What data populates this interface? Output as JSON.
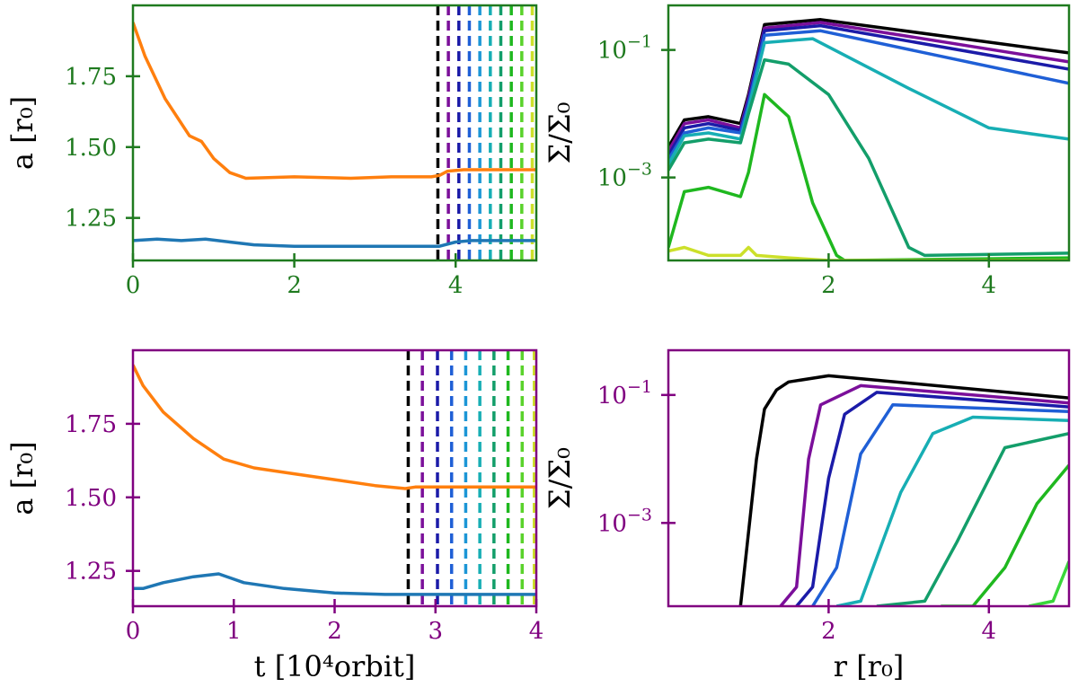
{
  "chart_data": [
    {
      "id": "top-left",
      "type": "line",
      "axis_color": "#1f7a1f",
      "xlim": [
        0,
        5
      ],
      "ylim": [
        1.1,
        2.0
      ],
      "xticks": [
        {
          "v": 0,
          "label": "0"
        },
        {
          "v": 2,
          "label": "2"
        },
        {
          "v": 4,
          "label": "4"
        }
      ],
      "yticks": [
        {
          "v": 1.25,
          "label": "1.25"
        },
        {
          "v": 1.5,
          "label": "1.50"
        },
        {
          "v": 1.75,
          "label": "1.75"
        }
      ],
      "ylabel": "a [r₀]",
      "xlabel": "",
      "series": [
        {
          "color": "#ff7f0e",
          "x": [
            0,
            0.15,
            0.4,
            0.7,
            0.85,
            1.0,
            1.2,
            1.4,
            2.0,
            2.7,
            3.2,
            3.7,
            3.8,
            3.9,
            4.1,
            5.0
          ],
          "y": [
            1.94,
            1.82,
            1.67,
            1.54,
            1.52,
            1.46,
            1.41,
            1.39,
            1.395,
            1.39,
            1.395,
            1.395,
            1.4,
            1.415,
            1.42,
            1.42
          ]
        },
        {
          "color": "#1f77b4",
          "x": [
            0,
            0.3,
            0.6,
            0.9,
            1.2,
            1.5,
            2.0,
            2.5,
            3.0,
            3.5,
            3.8,
            4.0,
            4.2,
            5.0
          ],
          "y": [
            1.17,
            1.175,
            1.17,
            1.175,
            1.165,
            1.155,
            1.15,
            1.15,
            1.15,
            1.15,
            1.15,
            1.165,
            1.17,
            1.17
          ]
        }
      ],
      "vlines": {
        "x": [
          3.78,
          3.91,
          4.04,
          4.17,
          4.3,
          4.43,
          4.56,
          4.69,
          4.82,
          4.95
        ],
        "colors": [
          "#000000",
          "#7b0f9a",
          "#1b1ba8",
          "#1f5fd6",
          "#1c96d6",
          "#17aeb4",
          "#139e6a",
          "#1fb81f",
          "#5ad22b",
          "#cce02a"
        ]
      }
    },
    {
      "id": "top-right",
      "type": "line",
      "axis_color": "#1f7a1f",
      "xlim": [
        0,
        5
      ],
      "ylog": true,
      "ylim": [
        5e-05,
        0.5
      ],
      "xticks": [
        {
          "v": 2,
          "label": "2"
        },
        {
          "v": 4,
          "label": "4"
        }
      ],
      "yticks": [
        {
          "v": 0.001,
          "label": "10",
          "exp": "−3"
        },
        {
          "v": 0.1,
          "label": "10",
          "exp": "−1"
        }
      ],
      "ylabel": "Σ/Σ₀",
      "xlabel": "",
      "series": [
        {
          "color": "#000000",
          "x": [
            0,
            0.2,
            0.5,
            0.9,
            1.0,
            1.2,
            1.9,
            5.0
          ],
          "y": [
            0.003,
            0.008,
            0.009,
            0.007,
            0.02,
            0.25,
            0.3,
            0.09
          ]
        },
        {
          "color": "#7b0f9a",
          "x": [
            0,
            0.2,
            0.5,
            0.9,
            1.0,
            1.2,
            1.9,
            5.0
          ],
          "y": [
            0.0026,
            0.007,
            0.008,
            0.006,
            0.018,
            0.22,
            0.27,
            0.065
          ]
        },
        {
          "color": "#1b1ba8",
          "x": [
            0,
            0.2,
            0.5,
            0.9,
            1.0,
            1.2,
            1.9,
            5.0
          ],
          "y": [
            0.0022,
            0.006,
            0.007,
            0.0055,
            0.016,
            0.2,
            0.24,
            0.05
          ]
        },
        {
          "color": "#1f5fd6",
          "x": [
            0,
            0.2,
            0.5,
            0.9,
            1.0,
            1.2,
            1.9,
            5.0
          ],
          "y": [
            0.0019,
            0.005,
            0.006,
            0.005,
            0.014,
            0.17,
            0.2,
            0.03
          ]
        },
        {
          "color": "#17aeb4",
          "x": [
            0,
            0.2,
            0.5,
            0.9,
            1.0,
            1.2,
            1.8,
            3.0,
            4.0,
            5.0
          ],
          "y": [
            0.0016,
            0.0045,
            0.005,
            0.004,
            0.012,
            0.13,
            0.15,
            0.025,
            0.006,
            0.004
          ]
        },
        {
          "color": "#139e6a",
          "x": [
            0,
            0.2,
            0.5,
            0.9,
            1.0,
            1.2,
            1.5,
            2.0,
            2.5,
            3.0,
            3.2,
            5.0
          ],
          "y": [
            0.0013,
            0.0035,
            0.004,
            0.0035,
            0.01,
            0.07,
            0.06,
            0.02,
            0.002,
            8e-05,
            6e-05,
            6.5e-05
          ]
        },
        {
          "color": "#1fb81f",
          "x": [
            0,
            0.2,
            0.5,
            0.9,
            1.0,
            1.2,
            1.5,
            1.8,
            2.1,
            2.2,
            5.0
          ],
          "y": [
            8e-05,
            0.0006,
            0.0007,
            0.0005,
            0.0012,
            0.02,
            0.009,
            0.0004,
            6e-05,
            5e-05,
            5.5e-05
          ]
        },
        {
          "color": "#cce02a",
          "x": [
            0,
            0.2,
            0.5,
            0.9,
            1.0,
            1.1,
            1.5,
            2.0,
            5.0
          ],
          "y": [
            7e-05,
            8e-05,
            6e-05,
            6e-05,
            8e-05,
            6e-05,
            5.5e-05,
            5e-05,
            5e-05
          ]
        }
      ]
    },
    {
      "id": "bottom-left",
      "type": "line",
      "axis_color": "#800080",
      "xlim": [
        0,
        4
      ],
      "ylim": [
        1.13,
        2.0
      ],
      "xticks": [
        {
          "v": 0,
          "label": "0"
        },
        {
          "v": 1,
          "label": "1"
        },
        {
          "v": 2,
          "label": "2"
        },
        {
          "v": 3,
          "label": "3"
        },
        {
          "v": 4,
          "label": "4"
        }
      ],
      "yticks": [
        {
          "v": 1.25,
          "label": "1.25"
        },
        {
          "v": 1.5,
          "label": "1.50"
        },
        {
          "v": 1.75,
          "label": "1.75"
        }
      ],
      "ylabel": "a [r₀]",
      "xlabel": "t [10⁴orbit]",
      "series": [
        {
          "color": "#ff7f0e",
          "x": [
            0,
            0.1,
            0.3,
            0.6,
            0.9,
            1.2,
            1.6,
            2.0,
            2.4,
            2.7,
            2.8,
            3.0,
            4.0
          ],
          "y": [
            1.95,
            1.88,
            1.79,
            1.7,
            1.63,
            1.6,
            1.58,
            1.56,
            1.54,
            1.53,
            1.535,
            1.535,
            1.535
          ]
        },
        {
          "color": "#1f77b4",
          "x": [
            0,
            0.1,
            0.3,
            0.6,
            0.85,
            1.1,
            1.5,
            2.0,
            2.5,
            3.0,
            4.0
          ],
          "y": [
            1.19,
            1.19,
            1.21,
            1.23,
            1.24,
            1.21,
            1.19,
            1.175,
            1.17,
            1.17,
            1.17
          ]
        }
      ],
      "vlines": {
        "x": [
          2.73,
          2.87,
          3.02,
          3.16,
          3.3,
          3.44,
          3.58,
          3.72,
          3.86,
          3.98
        ],
        "colors": [
          "#000000",
          "#7b0f9a",
          "#1b1ba8",
          "#1f5fd6",
          "#1c96d6",
          "#17aeb4",
          "#139e6a",
          "#1fb81f",
          "#5ad22b",
          "#cce02a"
        ]
      }
    },
    {
      "id": "bottom-right",
      "type": "line",
      "axis_color": "#800080",
      "xlim": [
        0,
        5
      ],
      "ylog": true,
      "ylim": [
        5e-05,
        0.5
      ],
      "xticks": [
        {
          "v": 2,
          "label": "2"
        },
        {
          "v": 4,
          "label": "4"
        }
      ],
      "yticks": [
        {
          "v": 0.001,
          "label": "10",
          "exp": "−3"
        },
        {
          "v": 0.1,
          "label": "10",
          "exp": "−1"
        }
      ],
      "ylabel": "Σ/Σ₀",
      "xlabel": "r [r₀]",
      "series": [
        {
          "color": "#000000",
          "x": [
            0.9,
            1.1,
            1.2,
            1.35,
            1.5,
            2.0,
            5.0
          ],
          "y": [
            5e-05,
            0.01,
            0.06,
            0.12,
            0.16,
            0.2,
            0.09
          ]
        },
        {
          "color": "#7b0f9a",
          "x": [
            1.4,
            1.6,
            1.75,
            1.9,
            2.4,
            5.0
          ],
          "y": [
            5e-05,
            0.0001,
            0.01,
            0.07,
            0.14,
            0.075
          ]
        },
        {
          "color": "#1b1ba8",
          "x": [
            1.6,
            1.8,
            2.0,
            2.2,
            2.6,
            5.0
          ],
          "y": [
            5e-05,
            0.0001,
            0.005,
            0.05,
            0.11,
            0.065
          ]
        },
        {
          "color": "#1f5fd6",
          "x": [
            1.8,
            2.1,
            2.4,
            2.8,
            5.0
          ],
          "y": [
            5e-05,
            0.0002,
            0.012,
            0.07,
            0.055
          ]
        },
        {
          "color": "#17aeb4",
          "x": [
            2.1,
            2.4,
            2.9,
            3.3,
            3.8,
            5.0
          ],
          "y": [
            5e-05,
            6e-05,
            0.003,
            0.025,
            0.045,
            0.04
          ]
        },
        {
          "color": "#139e6a",
          "x": [
            2.6,
            3.2,
            3.6,
            4.2,
            5.0
          ],
          "y": [
            5e-05,
            6e-05,
            0.0005,
            0.015,
            0.025
          ]
        },
        {
          "color": "#1fb81f",
          "x": [
            3.4,
            3.8,
            4.2,
            4.6,
            5.0
          ],
          "y": [
            5e-05,
            5e-05,
            0.0002,
            0.002,
            0.008
          ]
        },
        {
          "color": "#39d63a",
          "x": [
            4.5,
            4.8,
            5.0
          ],
          "y": [
            5e-05,
            6e-05,
            0.00025
          ]
        }
      ]
    }
  ]
}
